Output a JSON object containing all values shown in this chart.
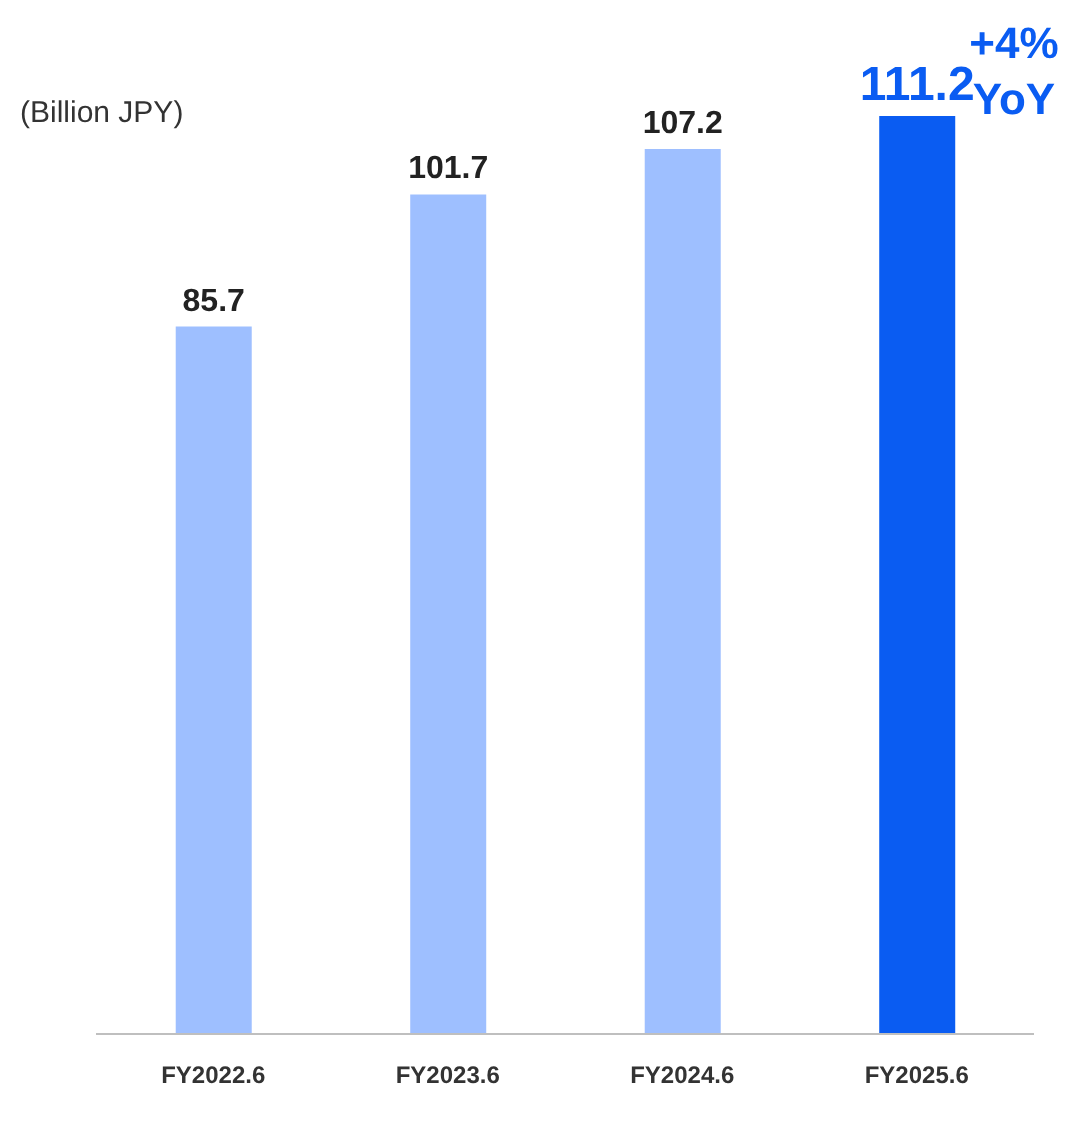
{
  "chart_data": {
    "type": "bar",
    "categories": [
      "FY2022.6",
      "FY2023.6",
      "FY2024.6",
      "FY2025.6"
    ],
    "values": [
      85.7,
      101.7,
      107.2,
      111.2
    ],
    "colors": [
      "#9ebfff",
      "#9ebfff",
      "#9ebfff",
      "#0a5cf2"
    ],
    "data_labels": true,
    "annotations": [
      "(Billion JPY)",
      "+4% YoY"
    ],
    "grid": false,
    "legend": false
  }
}
